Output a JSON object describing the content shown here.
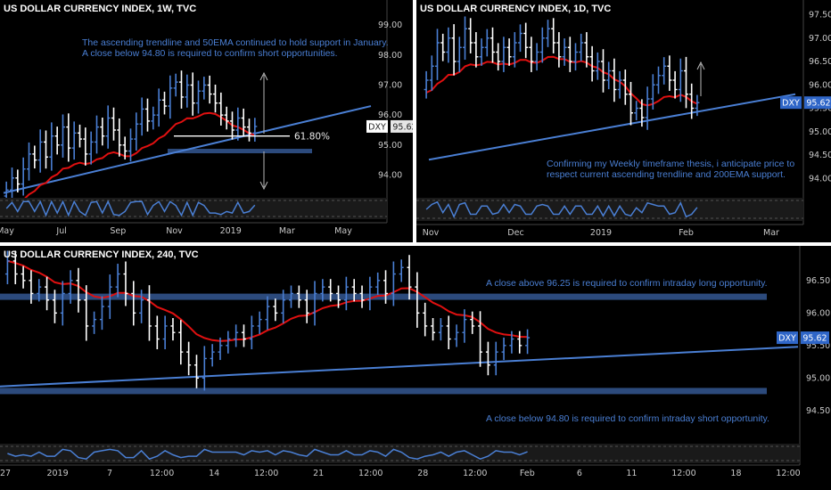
{
  "charts": [
    {
      "id": "weekly",
      "title": "US DOLLAR CURRENCY INDEX, 1W, TVC",
      "note": [
        "The ascending trendline and 50EMA continued to hold support in January.",
        "A close below 94.80 is required to confirm short opportunities."
      ],
      "y_ticks": [
        "99.00",
        "98.00",
        "97.00",
        "96.00",
        "95.00",
        "94.00"
      ],
      "x_ticks": [
        "May",
        "Jul",
        "Sep",
        "Nov",
        "2019",
        "Mar",
        "May"
      ],
      "price_tag": {
        "symbol": "DXY",
        "value": "95.62"
      },
      "fib_label": "61.80%",
      "colors": {
        "up": "#4a7fd4",
        "down": "#ffffff",
        "ema": "#e01010",
        "line": "#4a7fd4",
        "zone": "#2c4a7c"
      }
    },
    {
      "id": "daily",
      "title": "US DOLLAR CURRENCY INDEX, 1D, TVC",
      "note": [
        "Confirming my Weekly timeframe thesis, i anticipate price to",
        "respect current ascending trendline and 200EMA support."
      ],
      "y_ticks": [
        "97.50",
        "97.00",
        "96.50",
        "96.00",
        "95.50",
        "95.00",
        "94.50",
        "94.00"
      ],
      "x_ticks": [
        "Nov",
        "Dec",
        "2019",
        "Feb",
        "Mar"
      ],
      "price_tag": {
        "symbol": "DXY",
        "value": "95.62"
      }
    },
    {
      "id": "h4",
      "title": "US DOLLAR CURRENCY INDEX, 240, TVC",
      "note_top": "A close above 96.25 is required to confirm intraday long opportunity.",
      "note_bottom": "A close below 94.80 is required to confirm intraday short opportunity.",
      "y_ticks": [
        "96.50",
        "96.00",
        "95.50",
        "95.00",
        "94.50"
      ],
      "x_ticks": [
        "27",
        "2019",
        "7",
        "12:00",
        "14",
        "12:00",
        "21",
        "12:00",
        "28",
        "12:00",
        "Feb",
        "6",
        "11",
        "12:00",
        "18",
        "12:00"
      ],
      "price_tag": {
        "symbol": "DXY",
        "value": "95.62"
      }
    }
  ],
  "chart_data": [
    {
      "type": "candlestick",
      "title": "US DOLLAR CURRENCY INDEX, 1W, TVC",
      "timeframe": "1W",
      "ylim": [
        93.3,
        99.6
      ],
      "x_ticks": [
        "May",
        "Jul",
        "Sep",
        "Nov",
        "2019",
        "Mar",
        "May"
      ],
      "last_price": 95.62,
      "levels": {
        "fib_61_8": 95.3,
        "support_zone": 94.8
      },
      "trendline": {
        "from": 93.4,
        "to": 96.3
      },
      "series": [
        {
          "name": "Close",
          "values": [
            93.5,
            93.9,
            93.7,
            94.2,
            94.7,
            94.5,
            95.1,
            94.6,
            95.3,
            95.0,
            95.6,
            94.9,
            95.4,
            95.2,
            94.7,
            95.1,
            95.6,
            95.3,
            95.9,
            95.5,
            95.0,
            94.8,
            95.2,
            95.7,
            96.2,
            95.8,
            96.0,
            96.5,
            96.3,
            96.9,
            97.1,
            96.6,
            97.0,
            96.4,
            96.8,
            97.0,
            96.7,
            96.4,
            96.0,
            95.8,
            95.5,
            95.9,
            95.6,
            95.4,
            95.62
          ]
        }
      ]
    },
    {
      "type": "candlestick",
      "title": "US DOLLAR CURRENCY INDEX, 1D, TVC",
      "timeframe": "1D",
      "ylim": [
        93.7,
        97.7
      ],
      "x_ticks": [
        "Nov",
        "Dec",
        "2019",
        "Feb",
        "Mar"
      ],
      "last_price": 95.62,
      "ema200_support": true,
      "series": [
        {
          "name": "Close",
          "values": [
            96.1,
            96.4,
            96.9,
            96.7,
            97.0,
            96.5,
            96.8,
            97.2,
            96.9,
            96.6,
            96.8,
            97.0,
            96.7,
            96.5,
            96.8,
            96.6,
            96.9,
            97.1,
            96.8,
            96.5,
            96.7,
            97.0,
            97.2,
            96.9,
            96.6,
            96.8,
            96.5,
            96.7,
            96.9,
            96.6,
            96.3,
            96.5,
            96.1,
            96.3,
            95.9,
            96.1,
            95.8,
            95.4,
            95.5,
            95.3,
            95.7,
            96.0,
            96.2,
            96.4,
            96.1,
            95.9,
            96.3,
            95.8,
            95.5,
            95.62
          ]
        }
      ]
    },
    {
      "type": "candlestick",
      "title": "US DOLLAR CURRENCY INDEX, 240, TVC",
      "timeframe": "240",
      "ylim": [
        94.1,
        96.95
      ],
      "x_ticks": [
        "27",
        "2019",
        "7",
        "12:00",
        "14",
        "12:00",
        "21",
        "12:00",
        "28",
        "12:00",
        "Feb",
        "6",
        "11",
        "12:00",
        "18",
        "12:00"
      ],
      "last_price": 95.62,
      "levels": {
        "resistance": 96.25,
        "support": 94.8
      },
      "series": [
        {
          "name": "Close",
          "values": [
            96.8,
            96.6,
            96.5,
            96.3,
            96.4,
            96.2,
            96.0,
            96.3,
            96.5,
            96.2,
            95.8,
            95.9,
            96.1,
            96.4,
            96.6,
            96.3,
            96.0,
            96.2,
            95.8,
            95.6,
            95.8,
            95.7,
            95.4,
            95.2,
            95.0,
            95.3,
            95.4,
            95.5,
            95.6,
            95.7,
            95.6,
            95.8,
            95.9,
            96.1,
            96.0,
            96.2,
            96.3,
            96.2,
            96.0,
            96.3,
            96.4,
            96.3,
            96.2,
            96.4,
            96.3,
            96.2,
            96.4,
            96.5,
            96.3,
            96.6,
            96.7,
            96.4,
            96.0,
            95.8,
            95.7,
            95.8,
            95.6,
            95.7,
            95.9,
            95.8,
            95.4,
            95.2,
            95.4,
            95.5,
            95.6,
            95.5,
            95.62
          ]
        }
      ]
    }
  ]
}
